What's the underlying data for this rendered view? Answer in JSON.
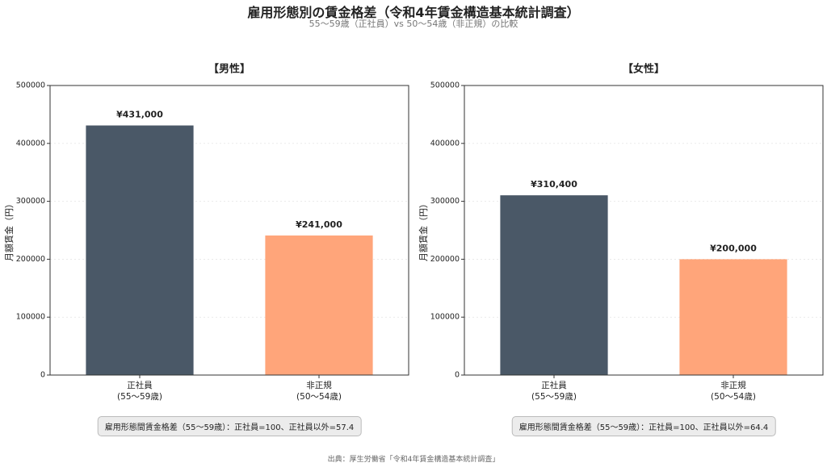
{
  "title": "雇用形態別の賃金格差（令和4年賃金構造基本統計調査）",
  "subtitle": "55〜59歳（正社員）vs 50〜54歳（非正規）の比較",
  "source": "出典：厚生労働省「令和4年賃金構造基本統計調査」",
  "chart_data": [
    {
      "type": "bar",
      "title": "【男性】",
      "y_label": "月額賃金（円）",
      "categories": [
        "正社員\n(55〜59歳)",
        "非正規\n(50〜54歳)"
      ],
      "values": [
        431000,
        241000
      ],
      "value_labels": [
        "¥431,000",
        "¥241,000"
      ],
      "colors": [
        "#4a5867",
        "#ffa57a"
      ],
      "ylim": [
        0,
        500000
      ],
      "yticks": [
        0,
        100000,
        200000,
        300000,
        400000,
        500000
      ],
      "grid": true,
      "annotation": "雇用形態間賃金格差（55〜59歳）：正社員=100、正社員以外=57.4"
    },
    {
      "type": "bar",
      "title": "【女性】",
      "y_label": "月額賃金（円）",
      "categories": [
        "正社員\n(55〜59歳)",
        "非正規\n(50〜54歳)"
      ],
      "values": [
        310400,
        200000
      ],
      "value_labels": [
        "¥310,400",
        "¥200,000"
      ],
      "colors": [
        "#4a5867",
        "#ffa57a"
      ],
      "ylim": [
        0,
        500000
      ],
      "yticks": [
        0,
        100000,
        200000,
        300000,
        400000,
        500000
      ],
      "grid": true,
      "annotation": "雇用形態間賃金格差（55〜59歳）：正社員=100、正社員以外=64.4"
    }
  ]
}
